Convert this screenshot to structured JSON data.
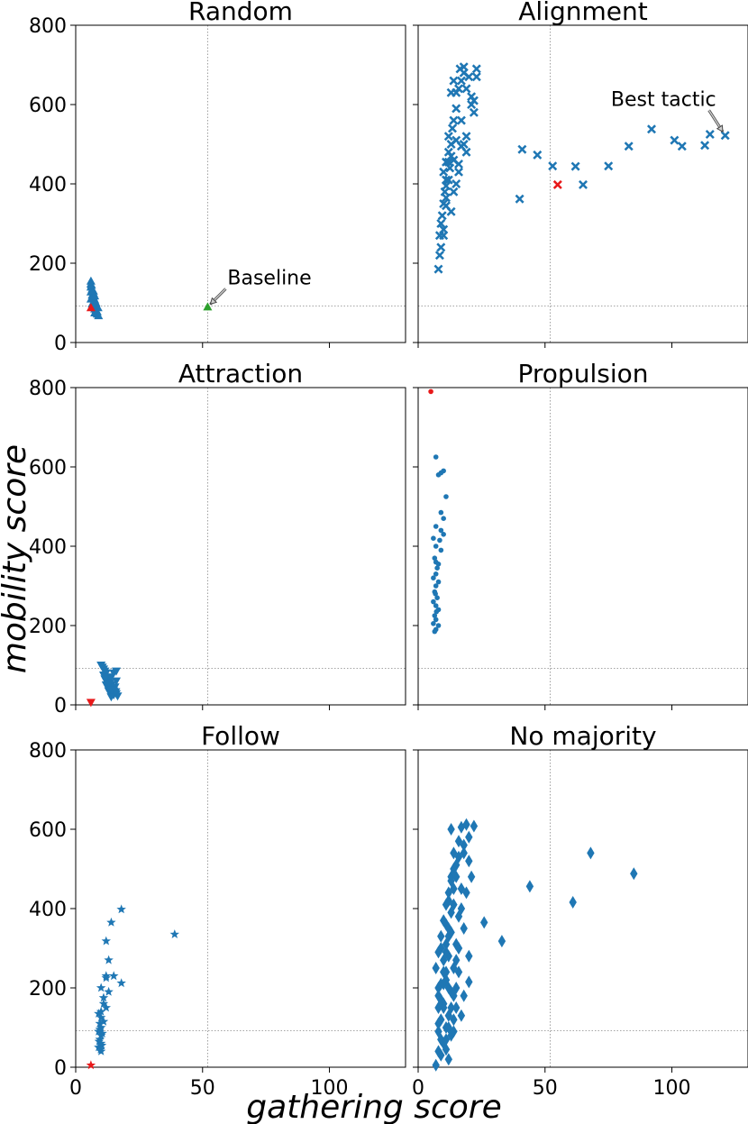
{
  "chart_data": {
    "type": "scatter",
    "xlabel": "gathering score",
    "ylabel": "mobility score",
    "xlim": [
      0,
      130
    ],
    "ylim": [
      0,
      800
    ],
    "xticks": [
      0,
      50,
      100
    ],
    "yticks": [
      0,
      200,
      400,
      600,
      800
    ],
    "xtick_labels": [
      "0",
      "50",
      "100"
    ],
    "ytick_labels": [
      "0",
      "200",
      "400",
      "600",
      "800"
    ],
    "reference_lines": {
      "x": 52,
      "y": 92,
      "style": "dotted",
      "color": "#888888"
    },
    "colors": {
      "points": "#1f77b4",
      "highlight": "#e8191a",
      "baseline": "#2ca02c"
    },
    "panels": [
      {
        "title": "Random",
        "marker": "triangle-up",
        "points": [
          [
            6,
            155
          ],
          [
            6,
            148
          ],
          [
            6,
            140
          ],
          [
            6.5,
            135
          ],
          [
            6,
            128
          ],
          [
            7,
            125
          ],
          [
            6.5,
            120
          ],
          [
            7,
            115
          ],
          [
            6,
            110
          ],
          [
            7.5,
            108
          ],
          [
            7,
            102
          ],
          [
            6.5,
            98
          ],
          [
            8,
            95
          ],
          [
            7,
            90
          ],
          [
            7.5,
            85
          ],
          [
            8,
            82
          ],
          [
            8.5,
            78
          ],
          [
            7.5,
            75
          ],
          [
            8.5,
            72
          ],
          [
            9,
            68
          ],
          [
            7,
            130
          ],
          [
            7.5,
            118
          ],
          [
            6.2,
            145
          ],
          [
            8,
            100
          ],
          [
            8.8,
            88
          ]
        ],
        "highlight": [
          [
            6,
            88
          ]
        ],
        "baseline_point": [
          52,
          90
        ],
        "annotation": {
          "text": "Baseline",
          "target": [
            52,
            90
          ]
        }
      },
      {
        "title": "Alignment",
        "marker": "x",
        "points": [
          [
            8,
            185
          ],
          [
            8.5,
            220
          ],
          [
            9,
            240
          ],
          [
            8.5,
            270
          ],
          [
            10,
            285
          ],
          [
            9,
            300
          ],
          [
            9.5,
            320
          ],
          [
            10,
            350
          ],
          [
            11,
            365
          ],
          [
            10.5,
            380
          ],
          [
            11,
            395
          ],
          [
            12,
            410
          ],
          [
            10,
            430
          ],
          [
            11,
            455
          ],
          [
            12.5,
            440
          ],
          [
            13,
            470
          ],
          [
            12,
            480
          ],
          [
            14,
            460
          ],
          [
            13,
            500
          ],
          [
            12,
            520
          ],
          [
            13.5,
            540
          ],
          [
            15,
            510
          ],
          [
            14,
            560
          ],
          [
            15,
            590
          ],
          [
            13,
            630
          ],
          [
            14,
            660
          ],
          [
            15,
            630
          ],
          [
            16,
            640
          ],
          [
            16.5,
            690
          ],
          [
            17,
            660
          ],
          [
            18,
            680
          ],
          [
            18,
            695
          ],
          [
            19,
            640
          ],
          [
            20,
            670
          ],
          [
            21,
            600
          ],
          [
            22,
            610
          ],
          [
            22,
            580
          ],
          [
            21,
            620
          ],
          [
            23,
            690
          ],
          [
            23,
            670
          ],
          [
            18,
            500
          ],
          [
            19,
            520
          ],
          [
            17,
            495
          ],
          [
            19,
            480
          ],
          [
            16,
            430
          ],
          [
            15,
            400
          ],
          [
            14,
            380
          ],
          [
            13,
            330
          ],
          [
            11,
            345
          ],
          [
            12,
            455
          ],
          [
            10,
            270
          ],
          [
            16,
            450
          ],
          [
            17,
            560
          ],
          [
            11,
            410
          ],
          [
            40,
            362
          ],
          [
            41,
            487
          ],
          [
            47,
            473
          ],
          [
            53,
            445
          ],
          [
            62,
            444
          ],
          [
            65,
            398
          ],
          [
            75,
            445
          ],
          [
            83,
            495
          ],
          [
            92,
            538
          ],
          [
            101,
            510
          ],
          [
            104,
            495
          ],
          [
            113,
            497
          ],
          [
            115,
            525
          ],
          [
            121,
            522
          ]
        ],
        "highlight": [
          [
            55,
            398
          ]
        ],
        "annotation": {
          "text": "Best tactic",
          "target": [
            121,
            522
          ]
        }
      },
      {
        "title": "Attraction",
        "marker": "triangle-down",
        "points": [
          [
            10,
            100
          ],
          [
            10.5,
            95
          ],
          [
            11,
            90
          ],
          [
            11.5,
            85
          ],
          [
            12,
            80
          ],
          [
            11,
            75
          ],
          [
            12.5,
            70
          ],
          [
            13,
            65
          ],
          [
            12,
            60
          ],
          [
            13.5,
            55
          ],
          [
            14,
            50
          ],
          [
            13,
            45
          ],
          [
            14.5,
            40
          ],
          [
            15,
            35
          ],
          [
            14,
            30
          ],
          [
            16,
            28
          ],
          [
            15,
            25
          ],
          [
            16.5,
            22
          ],
          [
            14,
            20
          ],
          [
            13,
            35
          ],
          [
            15.5,
            45
          ],
          [
            16,
            60
          ],
          [
            12,
            50
          ],
          [
            14,
            70
          ],
          [
            15,
            80
          ],
          [
            16,
            85
          ],
          [
            13,
            55
          ],
          [
            11.5,
            65
          ],
          [
            14.2,
            38
          ],
          [
            15.8,
            33
          ]
        ],
        "highlight": [
          [
            6,
            6
          ]
        ]
      },
      {
        "title": "Propulsion",
        "marker": "circle",
        "points": [
          [
            7,
            625
          ],
          [
            9,
            585
          ],
          [
            8,
            580
          ],
          [
            10,
            590
          ],
          [
            11,
            525
          ],
          [
            9,
            485
          ],
          [
            10,
            470
          ],
          [
            7,
            450
          ],
          [
            9,
            440
          ],
          [
            10,
            430
          ],
          [
            6,
            420
          ],
          [
            7,
            400
          ],
          [
            9,
            390
          ],
          [
            6.5,
            370
          ],
          [
            7,
            360
          ],
          [
            8,
            355
          ],
          [
            7,
            330
          ],
          [
            6,
            320
          ],
          [
            8,
            310
          ],
          [
            7,
            300
          ],
          [
            6.5,
            285
          ],
          [
            7.5,
            270
          ],
          [
            6,
            260
          ],
          [
            7,
            250
          ],
          [
            8,
            240
          ],
          [
            6.5,
            225
          ],
          [
            7,
            215
          ],
          [
            6,
            205
          ],
          [
            8,
            200
          ],
          [
            7,
            190
          ],
          [
            6.5,
            185
          ],
          [
            7.5,
            345
          ],
          [
            6.8,
            280
          ],
          [
            7.2,
            235
          ],
          [
            8.5,
            415
          ]
        ],
        "highlight": [
          [
            5,
            790
          ]
        ]
      },
      {
        "title": "Follow",
        "marker": "star",
        "points": [
          [
            18,
            398
          ],
          [
            14,
            365
          ],
          [
            12,
            318
          ],
          [
            13,
            270
          ],
          [
            15,
            230
          ],
          [
            12,
            225
          ],
          [
            10,
            200
          ],
          [
            18,
            212
          ],
          [
            13,
            190
          ],
          [
            11,
            160
          ],
          [
            12,
            150
          ],
          [
            9,
            135
          ],
          [
            10,
            125
          ],
          [
            9.5,
            110
          ],
          [
            10,
            100
          ],
          [
            9,
            90
          ],
          [
            10,
            80
          ],
          [
            9.5,
            70
          ],
          [
            10,
            60
          ],
          [
            9,
            50
          ],
          [
            10,
            40
          ],
          [
            39,
            335
          ],
          [
            11,
            175
          ],
          [
            12,
            230
          ],
          [
            10,
            140
          ],
          [
            11,
            115
          ],
          [
            9.5,
            95
          ],
          [
            10.5,
            85
          ],
          [
            9.2,
            65
          ],
          [
            10.3,
            55
          ],
          [
            9.8,
            45
          ]
        ],
        "highlight": [
          [
            6,
            5
          ]
        ]
      },
      {
        "title": "No majority",
        "marker": "diamond",
        "points": [
          [
            7,
            5
          ],
          [
            9,
            30
          ],
          [
            10,
            60
          ],
          [
            8,
            90
          ],
          [
            9,
            120
          ],
          [
            10,
            150
          ],
          [
            8,
            180
          ],
          [
            9,
            210
          ],
          [
            11,
            240
          ],
          [
            10,
            270
          ],
          [
            9,
            300
          ],
          [
            12,
            330
          ],
          [
            11,
            360
          ],
          [
            13,
            390
          ],
          [
            12,
            420
          ],
          [
            14,
            450
          ],
          [
            13,
            480
          ],
          [
            15,
            510
          ],
          [
            14,
            540
          ],
          [
            16,
            570
          ],
          [
            13,
            600
          ],
          [
            17,
            605
          ],
          [
            19,
            612
          ],
          [
            22,
            608
          ],
          [
            20,
            580
          ],
          [
            18,
            560
          ],
          [
            16,
            530
          ],
          [
            15,
            480
          ],
          [
            17,
            450
          ],
          [
            14,
            410
          ],
          [
            16,
            380
          ],
          [
            13,
            340
          ],
          [
            15,
            310
          ],
          [
            12,
            280
          ],
          [
            14,
            250
          ],
          [
            11,
            220
          ],
          [
            13,
            190
          ],
          [
            10,
            160
          ],
          [
            12,
            130
          ],
          [
            11,
            100
          ],
          [
            9,
            70
          ],
          [
            11,
            45
          ],
          [
            12,
            20
          ],
          [
            8,
            40
          ],
          [
            8,
            110
          ],
          [
            8,
            150
          ],
          [
            8,
            200
          ],
          [
            7,
            250
          ],
          [
            8,
            290
          ],
          [
            9,
            330
          ],
          [
            10,
            370
          ],
          [
            11,
            410
          ],
          [
            12,
            440
          ],
          [
            13,
            470
          ],
          [
            14,
            500
          ],
          [
            10,
            240
          ],
          [
            11,
            290
          ],
          [
            12,
            200
          ],
          [
            13,
            150
          ],
          [
            12,
            100
          ],
          [
            11,
            70
          ],
          [
            13,
            80
          ],
          [
            9,
            170
          ],
          [
            10,
            210
          ],
          [
            11,
            310
          ],
          [
            12,
            350
          ],
          [
            18,
            540
          ],
          [
            20,
            520
          ],
          [
            21,
            480
          ],
          [
            19,
            440
          ],
          [
            17,
            400
          ],
          [
            18,
            350
          ],
          [
            16,
            300
          ],
          [
            15,
            270
          ],
          [
            16,
            240
          ],
          [
            15,
            200
          ],
          [
            14,
            180
          ],
          [
            15,
            150
          ],
          [
            14,
            120
          ],
          [
            14,
            90
          ],
          [
            20,
            280
          ],
          [
            20,
            215
          ],
          [
            18,
            180
          ],
          [
            17,
            130
          ],
          [
            26,
            365
          ],
          [
            33,
            318
          ],
          [
            44,
            456
          ],
          [
            61,
            416
          ],
          [
            68,
            540
          ],
          [
            85,
            488
          ]
        ],
        "highlight": []
      }
    ]
  }
}
